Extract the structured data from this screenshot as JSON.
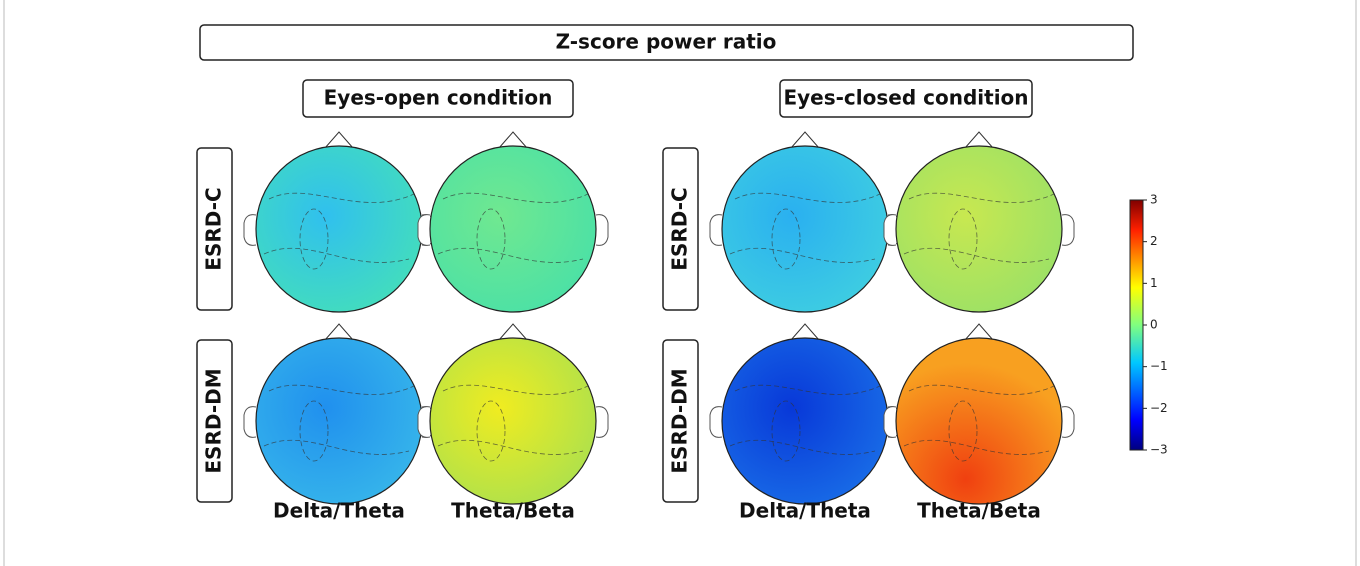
{
  "title": "Z-score power ratio",
  "conditions": [
    "Eyes-open  condition",
    "Eyes-closed condition"
  ],
  "rows": [
    "ESRD-C",
    "ESRD-DM"
  ],
  "columns": [
    "Delta/Theta",
    "Theta/Beta",
    "Delta/Theta",
    "Theta/Beta"
  ],
  "colorbar": {
    "ylim": [
      -3,
      3
    ],
    "yticks": [
      {
        "value": -3,
        "label": "−3"
      },
      {
        "value": -2,
        "label": "−2"
      },
      {
        "value": -1,
        "label": "−1"
      },
      0,
      1,
      2,
      3
    ]
  }
}
